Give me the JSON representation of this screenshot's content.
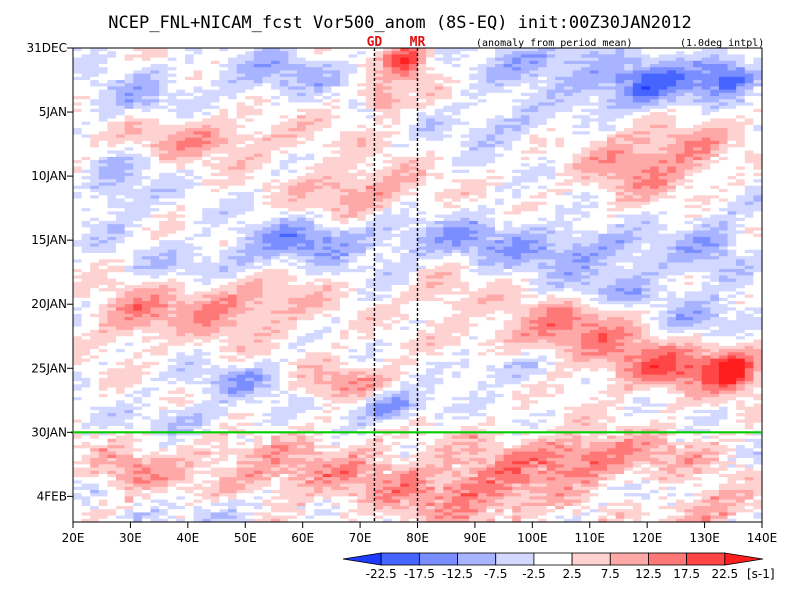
{
  "chart_data": {
    "type": "heatmap",
    "title": "NCEP_FNL+NICAM_fcst Vor500_anom (8S-EQ) init:00Z30JAN2012",
    "subtitle_left": "(anomaly from period mean)",
    "subtitle_right": "(1.0deg intpl)",
    "x_axis": {
      "range": [
        20,
        140
      ],
      "ticks": [
        {
          "value": 20,
          "label": "20E"
        },
        {
          "value": 30,
          "label": "30E"
        },
        {
          "value": 40,
          "label": "40E"
        },
        {
          "value": 50,
          "label": "50E"
        },
        {
          "value": 60,
          "label": "60E"
        },
        {
          "value": 70,
          "label": "70E"
        },
        {
          "value": 80,
          "label": "80E"
        },
        {
          "value": 90,
          "label": "90E"
        },
        {
          "value": 100,
          "label": "100E"
        },
        {
          "value": 110,
          "label": "110E"
        },
        {
          "value": 120,
          "label": "120E"
        },
        {
          "value": 130,
          "label": "130E"
        },
        {
          "value": 140,
          "label": "140E"
        }
      ]
    },
    "y_axis": {
      "range_days": [
        0,
        37
      ],
      "ticks": [
        {
          "day": 0,
          "label": "31DEC"
        },
        {
          "day": 5,
          "label": "5JAN"
        },
        {
          "day": 10,
          "label": "10JAN"
        },
        {
          "day": 15,
          "label": "15JAN"
        },
        {
          "day": 20,
          "label": "20JAN"
        },
        {
          "day": 25,
          "label": "25JAN"
        },
        {
          "day": 30,
          "label": "30JAN"
        },
        {
          "day": 35,
          "label": "4FEB"
        }
      ]
    },
    "forecast_start": {
      "day": 30,
      "label": "30JAN",
      "color": "#00cc00"
    },
    "markers": [
      {
        "lon": 72.5,
        "label": "GD",
        "color": "#dd1111"
      },
      {
        "lon": 80,
        "label": "MR",
        "color": "#dd1111"
      }
    ],
    "colorbar": {
      "levels": [
        -22.5,
        -17.5,
        -12.5,
        -7.5,
        -2.5,
        2.5,
        7.5,
        12.5,
        17.5,
        22.5
      ],
      "labels": [
        "-22.5",
        "-17.5",
        "-12.5",
        "-7.5",
        "-2.5",
        "2.5",
        "7.5",
        "12.5",
        "17.5",
        "22.5"
      ],
      "colors": [
        "#1e3cff",
        "#4664ff",
        "#7a8eff",
        "#a8b4ff",
        "#d2d8ff",
        "#ffffff",
        "#ffd2d2",
        "#ffa8a8",
        "#ff7878",
        "#ff4646",
        "#ff1e1e"
      ],
      "unit": "[s-1]"
    },
    "features": [
      {
        "lon": 120,
        "day": 3,
        "value": -20,
        "sx": 10,
        "sy": 1.8
      },
      {
        "lon": 134,
        "day": 2,
        "value": -17,
        "sx": 5,
        "sy": 1.5
      },
      {
        "lon": 102,
        "day": 1,
        "value": -12,
        "sx": 10,
        "sy": 1.6
      },
      {
        "lon": 78,
        "day": 1,
        "value": 20,
        "sx": 4,
        "sy": 1.5
      },
      {
        "lon": 74,
        "day": 4,
        "value": 15,
        "sx": 3,
        "sy": 1.2
      },
      {
        "lon": 55,
        "day": 2,
        "value": -9,
        "sx": 12,
        "sy": 1.8
      },
      {
        "lon": 30,
        "day": 4,
        "value": -8,
        "sx": 8,
        "sy": 2
      },
      {
        "lon": 42,
        "day": 7,
        "value": 10,
        "sx": 18,
        "sy": 1.6
      },
      {
        "lon": 95,
        "day": 6,
        "value": -7,
        "sx": 10,
        "sy": 1.5
      },
      {
        "lon": 118,
        "day": 9,
        "value": 11,
        "sx": 9,
        "sy": 3
      },
      {
        "lon": 128,
        "day": 8,
        "value": 10,
        "sx": 6,
        "sy": 2
      },
      {
        "lon": 70,
        "day": 11,
        "value": 12,
        "sx": 10,
        "sy": 2
      },
      {
        "lon": 28,
        "day": 11,
        "value": -8,
        "sx": 6,
        "sy": 3
      },
      {
        "lon": 85,
        "day": 15,
        "value": -10,
        "sx": 15,
        "sy": 2
      },
      {
        "lon": 60,
        "day": 15,
        "value": -13,
        "sx": 10,
        "sy": 1.6
      },
      {
        "lon": 45,
        "day": 17,
        "value": -9,
        "sx": 12,
        "sy": 1.5
      },
      {
        "lon": 110,
        "day": 16,
        "value": -11,
        "sx": 15,
        "sy": 2
      },
      {
        "lon": 132,
        "day": 15,
        "value": -8,
        "sx": 6,
        "sy": 3
      },
      {
        "lon": 48,
        "day": 20,
        "value": 12,
        "sx": 14,
        "sy": 2.5
      },
      {
        "lon": 30,
        "day": 21,
        "value": 10,
        "sx": 7,
        "sy": 2
      },
      {
        "lon": 84,
        "day": 19,
        "value": 8,
        "sx": 5,
        "sy": 2
      },
      {
        "lon": 107,
        "day": 22,
        "value": 13,
        "sx": 15,
        "sy": 2.5
      },
      {
        "lon": 130,
        "day": 21,
        "value": -11,
        "sx": 10,
        "sy": 1.5
      },
      {
        "lon": 115,
        "day": 19,
        "value": -9,
        "sx": 10,
        "sy": 1.2
      },
      {
        "lon": 125,
        "day": 25,
        "value": 16,
        "sx": 12,
        "sy": 2
      },
      {
        "lon": 135,
        "day": 25,
        "value": 20,
        "sx": 4,
        "sy": 1.6
      },
      {
        "lon": 95,
        "day": 25,
        "value": -9,
        "sx": 8,
        "sy": 1.3
      },
      {
        "lon": 68,
        "day": 26,
        "value": 11,
        "sx": 9,
        "sy": 1.5
      },
      {
        "lon": 50,
        "day": 26,
        "value": -10,
        "sx": 9,
        "sy": 1.3
      },
      {
        "lon": 75,
        "day": 28,
        "value": -16,
        "sx": 6,
        "sy": 1.2
      },
      {
        "lon": 40,
        "day": 29,
        "value": -7,
        "sx": 10,
        "sy": 1.2
      },
      {
        "lon": 60,
        "day": 33,
        "value": 10,
        "sx": 25,
        "sy": 2.5
      },
      {
        "lon": 110,
        "day": 32,
        "value": 15,
        "sx": 18,
        "sy": 1.8
      },
      {
        "lon": 90,
        "day": 35,
        "value": 13,
        "sx": 14,
        "sy": 2
      },
      {
        "lon": 130,
        "day": 36,
        "value": 12,
        "sx": 8,
        "sy": 1.5
      },
      {
        "lon": 30,
        "day": 33,
        "value": 8,
        "sx": 6,
        "sy": 1.8
      },
      {
        "lon": 45,
        "day": 36,
        "value": -8,
        "sx": 8,
        "sy": 1.2
      },
      {
        "lon": 120,
        "day": 35,
        "value": -5,
        "sx": 6,
        "sy": 1.2
      }
    ]
  }
}
